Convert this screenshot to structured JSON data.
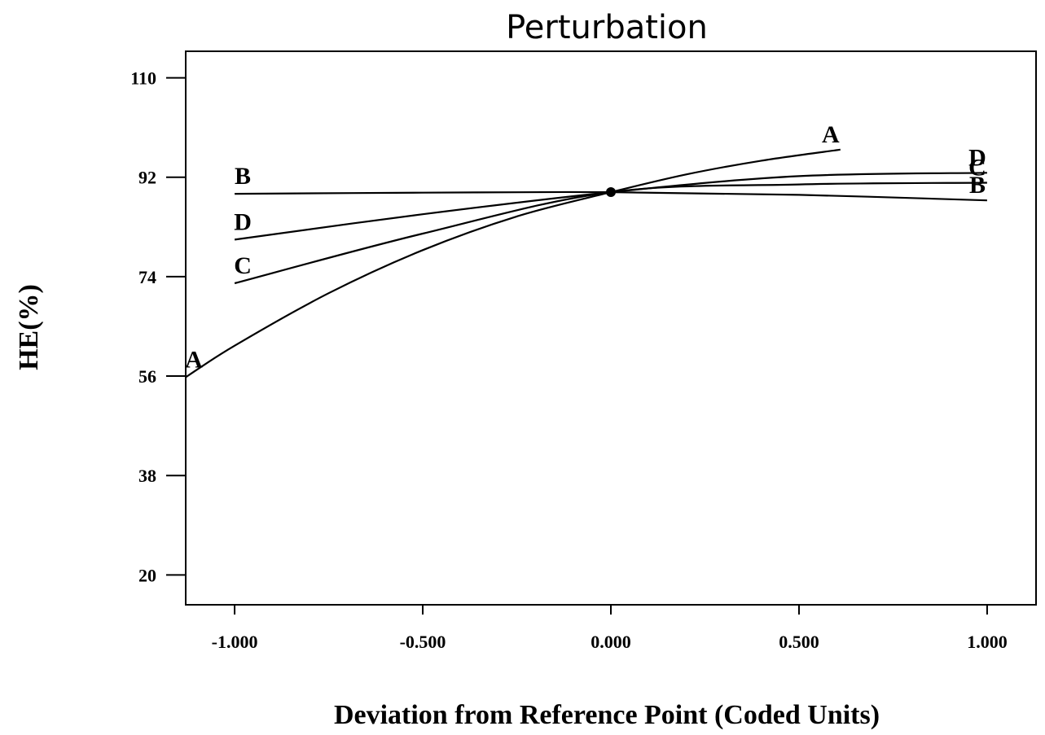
{
  "chart_data": {
    "type": "line",
    "title": "Perturbation",
    "xlabel": "Deviation from Reference Point (Coded Units)",
    "ylabel": "HE(%)",
    "xlim": [
      -1.13,
      1.13
    ],
    "ylim": [
      14.6,
      114.8
    ],
    "x_ticks": [
      -1.0,
      -0.5,
      0.0,
      0.5,
      1.0
    ],
    "x_tick_labels": [
      "-1.000",
      "-0.500",
      "0.000",
      "0.500",
      "1.000"
    ],
    "y_ticks": [
      20,
      38,
      56,
      74,
      92,
      110
    ],
    "y_tick_labels": [
      "20",
      "38",
      "56",
      "74",
      "92",
      "110"
    ],
    "reference_point": {
      "x": 0.0,
      "y": 89.3
    },
    "grid": false,
    "series": [
      {
        "name": "A",
        "x": [
          -1.13,
          -1.0,
          -0.75,
          -0.5,
          -0.25,
          0.0,
          0.2,
          0.4,
          0.61
        ],
        "y": [
          55.8,
          61.5,
          71.0,
          78.8,
          84.9,
          89.3,
          92.5,
          95.0,
          97.0
        ]
      },
      {
        "name": "B",
        "x": [
          -1.0,
          -0.5,
          0.0,
          0.5,
          1.0
        ],
        "y": [
          89.0,
          89.2,
          89.3,
          88.8,
          87.8
        ]
      },
      {
        "name": "C",
        "x": [
          -1.0,
          -0.5,
          0.0,
          0.5,
          1.0
        ],
        "y": [
          72.8,
          81.8,
          89.3,
          90.7,
          91.0
        ]
      },
      {
        "name": "D",
        "x": [
          -1.0,
          -0.5,
          0.0,
          0.5,
          1.0
        ],
        "y": [
          80.7,
          85.3,
          89.3,
          92.2,
          92.8
        ]
      }
    ]
  }
}
